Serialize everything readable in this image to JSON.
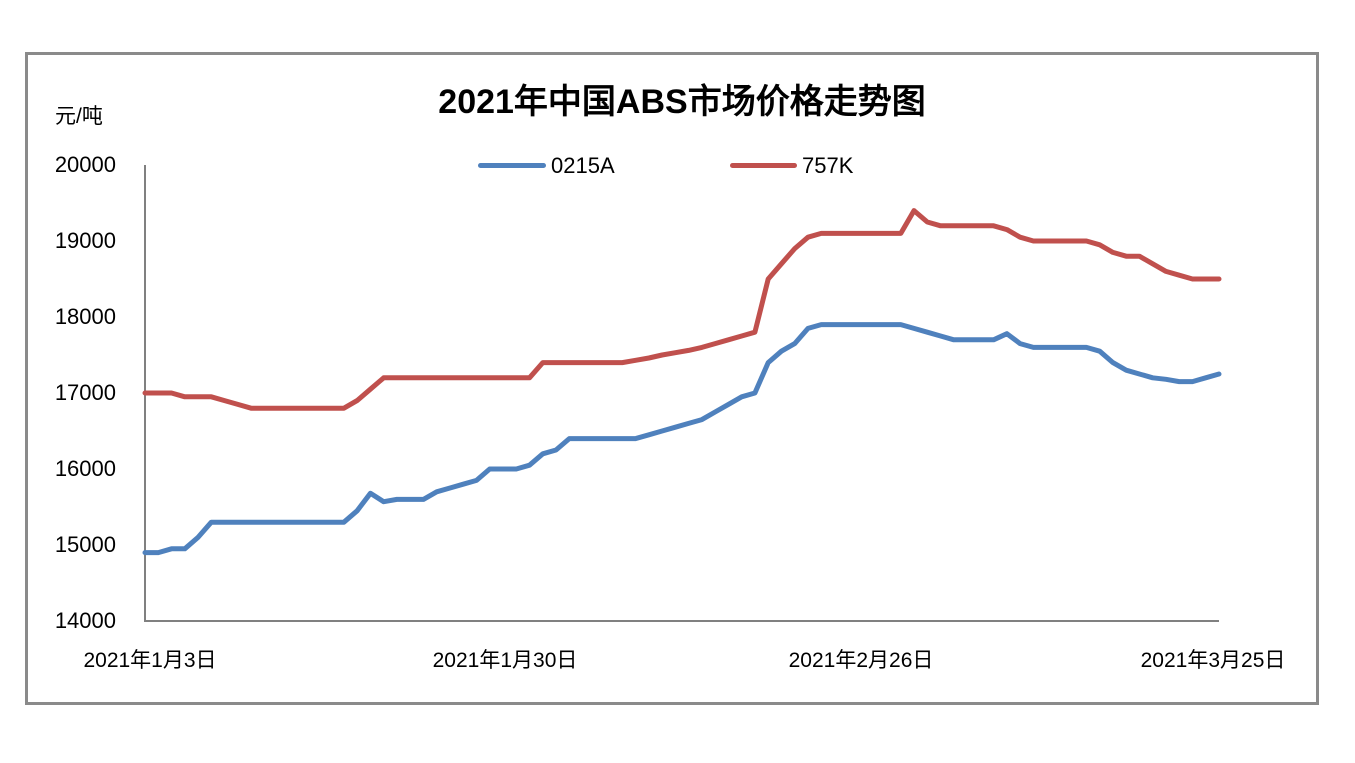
{
  "chart_data": {
    "type": "line",
    "title": "2021年中国ABS市场价格走势图",
    "ylabel": "元/吨",
    "xlabel": "",
    "ylim": [
      14000,
      20000
    ],
    "ytick_interval": 1000,
    "grid": false,
    "legend_position": "top",
    "x_count": 82,
    "yticks": [
      "20000",
      "19000",
      "18000",
      "17000",
      "16000",
      "15000",
      "14000"
    ],
    "xticks": [
      "2021年1月3日",
      "2021年1月30日",
      "2021年2月26日",
      "2021年3月25日"
    ],
    "xtick_positions": [
      0,
      27,
      54,
      81
    ],
    "series": [
      {
        "name": "0215A",
        "color": "#4F81BD",
        "values": [
          14900,
          14900,
          14950,
          14950,
          15100,
          15300,
          15300,
          15300,
          15300,
          15300,
          15300,
          15300,
          15300,
          15300,
          15300,
          15300,
          15450,
          15680,
          15570,
          15600,
          15600,
          15600,
          15700,
          15750,
          15800,
          15850,
          16000,
          16000,
          16000,
          16050,
          16200,
          16250,
          16400,
          16400,
          16400,
          16400,
          16400,
          16400,
          16450,
          16500,
          16550,
          16600,
          16650,
          16750,
          16850,
          16950,
          17000,
          17400,
          17550,
          17650,
          17850,
          17900,
          17900,
          17900,
          17900,
          17900,
          17900,
          17900,
          17850,
          17800,
          17750,
          17700,
          17700,
          17700,
          17700,
          17780,
          17650,
          17600,
          17600,
          17600,
          17600,
          17600,
          17550,
          17400,
          17300,
          17250,
          17200,
          17180,
          17150,
          17150,
          17200,
          17250
        ]
      },
      {
        "name": "757K",
        "color": "#C0504D",
        "values": [
          17000,
          17000,
          17000,
          16950,
          16950,
          16950,
          16900,
          16850,
          16800,
          16800,
          16800,
          16800,
          16800,
          16800,
          16800,
          16800,
          16900,
          17050,
          17200,
          17200,
          17200,
          17200,
          17200,
          17200,
          17200,
          17200,
          17200,
          17200,
          17200,
          17200,
          17400,
          17400,
          17400,
          17400,
          17400,
          17400,
          17400,
          17430,
          17460,
          17500,
          17530,
          17560,
          17600,
          17650,
          17700,
          17750,
          17800,
          18500,
          18700,
          18900,
          19050,
          19100,
          19100,
          19100,
          19100,
          19100,
          19100,
          19100,
          19400,
          19250,
          19200,
          19200,
          19200,
          19200,
          19200,
          19150,
          19050,
          19000,
          19000,
          19000,
          19000,
          19000,
          18950,
          18850,
          18800,
          18800,
          18700,
          18600,
          18550,
          18500,
          18500,
          18500
        ]
      }
    ]
  },
  "colors": {
    "axis": "#808080",
    "border": "#8A8A8A",
    "background": "#FFFFFF",
    "text": "#000000",
    "series_blue": "#4F81BD",
    "series_red": "#C0504D"
  }
}
